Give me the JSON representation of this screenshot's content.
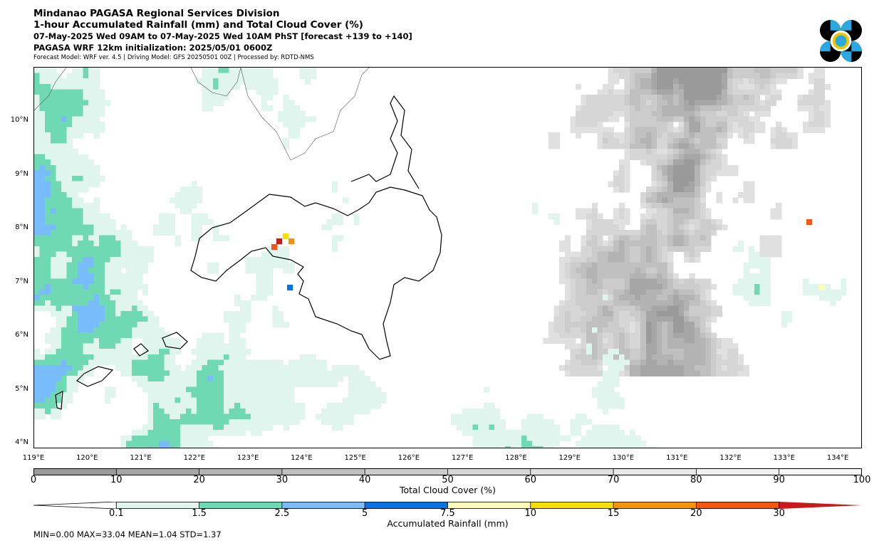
{
  "header": {
    "title1": "Mindanao PAGASA Regional Services Division",
    "title2": "1-hour Accumulated Rainfall (mm) and Total Cloud Cover (%)",
    "title3": "07-May-2025 Wed 09AM to 07-May-2025 Wed 10AM PhST [forecast +139 to +140]",
    "title4": "PAGASA WRF 12km initialization: 2025/05/01 0600Z",
    "subtitle": "Forecast Model: WRF ver. 4.5 | Driving Model: GFS 20250501 00Z | Processed by: RDTD-NMS"
  },
  "map": {
    "lat_labels": [
      "10°N",
      "9°N",
      "8°N",
      "7°N",
      "6°N",
      "5°N",
      "4°N"
    ],
    "lat_values": [
      10,
      9,
      8,
      7,
      6,
      5,
      4
    ],
    "lon_labels": [
      "119°E",
      "120°E",
      "121°E",
      "122°E",
      "123°E",
      "124°E",
      "125°E",
      "126°E",
      "127°E",
      "128°E",
      "129°E",
      "130°E",
      "131°E",
      "132°E",
      "133°E",
      "134°E"
    ],
    "lon_values": [
      119,
      120,
      121,
      122,
      123,
      124,
      125,
      126,
      127,
      128,
      129,
      130,
      131,
      132,
      133,
      134
    ],
    "lon_range": [
      119,
      134.45
    ],
    "lat_range": [
      3.9,
      11
    ]
  },
  "cloud_colorbar": {
    "label": "Total Cloud Cover (%)",
    "ticks": [
      "0",
      "10",
      "20",
      "30",
      "40",
      "50",
      "60",
      "70",
      "80",
      "90",
      "100"
    ],
    "colors": [
      "#9a9a9a",
      "#a6a6a6",
      "#b3b3b3",
      "#c0c0c0",
      "#cccccc",
      "#d6d6d6",
      "#e0e0e0",
      "#e8e8e8",
      "#f0f0f0",
      "#f7f7f7"
    ]
  },
  "rain_colorbar": {
    "label": "Accumulated Rainfall (mm)",
    "ticks": [
      "0.1",
      "1.5",
      "2.5",
      "5",
      "7.5",
      "10",
      "15",
      "20",
      "30"
    ],
    "colors": [
      "#dff5ee",
      "#6fd9b4",
      "#79bcfb",
      "#0a73e3",
      "#fefdb8",
      "#f7de05",
      "#f5930f",
      "#f35710",
      "#c81a1a"
    ]
  },
  "stats": "MIN=0.00   MAX=33.04   MEAN=1.04   STD=1.37"
}
